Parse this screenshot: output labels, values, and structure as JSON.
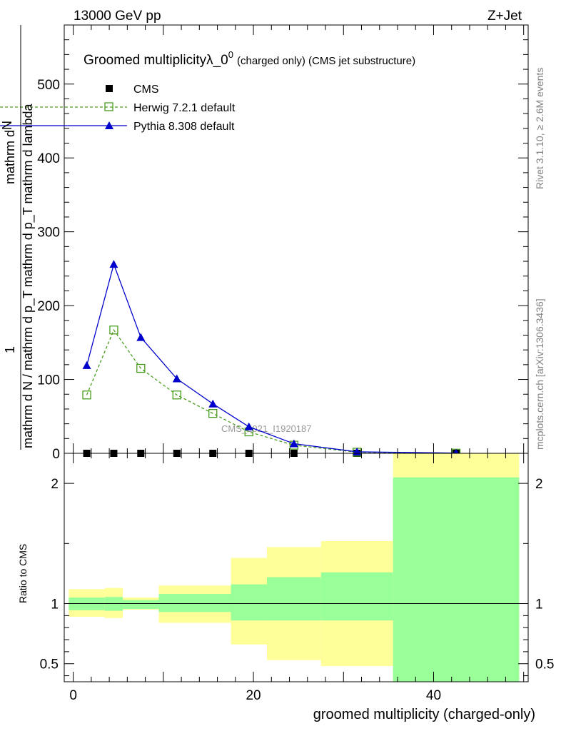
{
  "header": {
    "energy": "13000 GeV pp",
    "process": "Z+Jet",
    "rivet": "Rivet 3.1.10, ≥ 2.6M events",
    "mcplots": "mcplots.cern.ch [arXiv:1306.3436]",
    "watermark": "CMS_2021_I1920187"
  },
  "chart_data": [
    {
      "type": "line",
      "title_main": "Groomed multiplicityλ_0",
      "title_sup": "0",
      "title_small": "(charged only) (CMS jet substructure)",
      "ylabel_top": "1",
      "ylabel_main": "mathrm d N / mathrm d p_T mathrm d p_T mathrm d lambda",
      "ylabel_denominator": "mathrm d N / mathrm d p",
      "ylabel_numerator": "mathrm d",
      "ylabel_N": "N",
      "ylabel_T": "T",
      "ylabel_mathrm_dp": "mathrm d p",
      "ylabel_T2": "T",
      "ylabel_mathrm_dlambda": "mathrm d lambda",
      "xlim": [
        -1,
        50.5
      ],
      "ylim": [
        0,
        580
      ],
      "yticks": [
        0,
        100,
        200,
        300,
        400,
        500
      ],
      "legend_position": "top-left",
      "series": [
        {
          "name": "CMS",
          "color": "#000000",
          "marker": "square",
          "x": [
            1.5,
            4.5,
            7.5,
            11.5,
            15.5,
            19.5,
            24.5,
            31.5,
            42.5
          ],
          "y": [
            0,
            0,
            0,
            0,
            0,
            0,
            0,
            0,
            0
          ]
        },
        {
          "name": "Herwig 7.2.1 default",
          "color": "#4a9c1e",
          "marker": "open-square",
          "dashed": true,
          "x": [
            1.5,
            4.5,
            7.5,
            11.5,
            15.5,
            19.5,
            24.5,
            31.5,
            42.5
          ],
          "y": [
            79,
            167,
            115,
            79,
            54,
            29,
            11,
            1.5,
            0.2
          ]
        },
        {
          "name": "Pythia 8.308 default",
          "color": "#0000cc",
          "marker": "filled-triangle",
          "x": [
            1.5,
            4.5,
            7.5,
            11.5,
            15.5,
            19.5,
            24.5,
            31.5,
            42.5
          ],
          "y": [
            119,
            256,
            157,
            101,
            67,
            36,
            13,
            2,
            0.3
          ]
        }
      ]
    },
    {
      "type": "area",
      "ylabel": "Ratio to CMS",
      "xlabel": "groomed multiplicity (charged-only)",
      "xlim": [
        -1,
        50.5
      ],
      "ylim": [
        0.35,
        2.25
      ],
      "yticks": [
        0.5,
        1,
        2
      ],
      "ytick_labels": [
        "0.5",
        "1",
        "2"
      ],
      "xticks": [
        0,
        20,
        40
      ],
      "reference_line": 1,
      "bins": [
        {
          "lo": -0.5,
          "hi": 3.5,
          "stat_lo": 0.945,
          "stat_hi": 1.05,
          "tot_lo": 0.89,
          "tot_hi": 1.12
        },
        {
          "lo": 3.5,
          "hi": 5.5,
          "stat_lo": 0.94,
          "stat_hi": 1.055,
          "tot_lo": 0.88,
          "tot_hi": 1.13
        },
        {
          "lo": 5.5,
          "hi": 9.5,
          "stat_lo": 0.955,
          "stat_hi": 1.03,
          "tot_lo": 0.95,
          "tot_hi": 1.05
        },
        {
          "lo": 9.5,
          "hi": 17.5,
          "stat_lo": 0.93,
          "stat_hi": 1.08,
          "tot_lo": 0.84,
          "tot_hi": 1.15
        },
        {
          "lo": 17.5,
          "hi": 21.5,
          "stat_lo": 0.86,
          "stat_hi": 1.16,
          "tot_lo": 0.66,
          "tot_hi": 1.38
        },
        {
          "lo": 21.5,
          "hi": 27.5,
          "stat_lo": 0.86,
          "stat_hi": 1.22,
          "tot_lo": 0.53,
          "tot_hi": 1.47
        },
        {
          "lo": 27.5,
          "hi": 35.5,
          "stat_lo": 0.86,
          "stat_hi": 1.26,
          "tot_lo": 0.48,
          "tot_hi": 1.52
        },
        {
          "lo": 35.5,
          "hi": 49.5,
          "stat_lo": 0.3,
          "stat_hi": 2.05,
          "tot_lo": 0.3,
          "tot_hi": 2.4
        }
      ],
      "colors": {
        "stat": "#99ff99",
        "total": "#ffff99"
      }
    }
  ]
}
